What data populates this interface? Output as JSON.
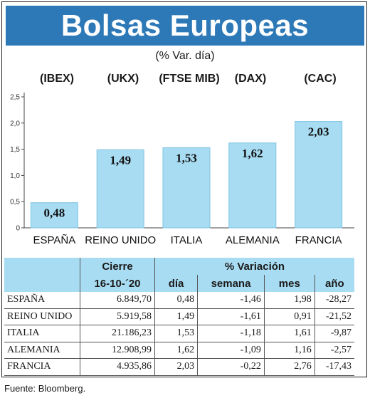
{
  "title": "Bolsas Europeas",
  "subtitle": "(% Var. día)",
  "tickers": [
    "(IBEX)",
    "(UKX)",
    "(FTSE MIB)",
    "(DAX)",
    "(CAC)"
  ],
  "chart_data": {
    "type": "bar",
    "categories": [
      "ESPAÑA",
      "REINO UNIDO",
      "ITALIA",
      "ALEMANIA",
      "FRANCIA"
    ],
    "values": [
      0.48,
      1.49,
      1.53,
      1.62,
      2.03
    ],
    "value_labels": [
      "0,48",
      "1,49",
      "1,53",
      "1,62",
      "2,03"
    ],
    "yticks": [
      0,
      0.5,
      1.0,
      1.5,
      2.0,
      2.5
    ],
    "ytick_labels": [
      "0",
      "0,5",
      "1,0",
      "1,5",
      "2,0",
      "2,5"
    ],
    "ylim": [
      0,
      2.5
    ],
    "bar_color": "#a8dcf2"
  },
  "table": {
    "header_cierre": "Cierre",
    "header_variacion": "% Variación",
    "header_date": "16-10-´20",
    "columns": [
      "día",
      "semana",
      "mes",
      "año"
    ],
    "rows": [
      {
        "name": "ESPAÑA",
        "cierre": "6.849,70",
        "dia": "0,48",
        "semana": "-1,46",
        "mes": "1,98",
        "anio": "-28,27"
      },
      {
        "name": "REINO UNIDO",
        "cierre": "5.919,58",
        "dia": "1,49",
        "semana": "-1,61",
        "mes": "0,91",
        "anio": "-21,52"
      },
      {
        "name": "ITALIA",
        "cierre": "21.186,23",
        "dia": "1,53",
        "semana": "-1,18",
        "mes": "1,61",
        "anio": "-9,87"
      },
      {
        "name": "ALEMANIA",
        "cierre": "12.908,99",
        "dia": "1,62",
        "semana": "-1,09",
        "mes": "1,16",
        "anio": "-2,57"
      },
      {
        "name": "FRANCIA",
        "cierre": "4.935,86",
        "dia": "2,03",
        "semana": "-0,22",
        "mes": "2,76",
        "anio": "-17,43"
      }
    ]
  },
  "source": "Fuente: Bloomberg.",
  "colors": {
    "banner": "#2d79b7",
    "bar": "#a8dcf2",
    "header": "#a8dcf2"
  }
}
